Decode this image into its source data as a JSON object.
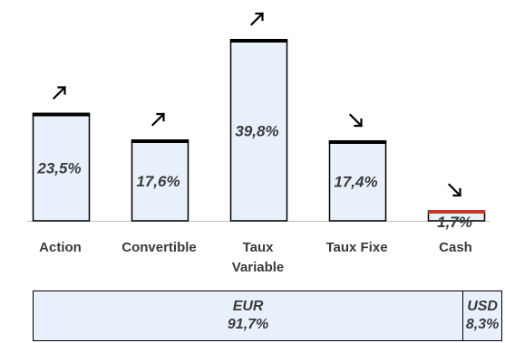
{
  "chart_data": {
    "type": "bar",
    "categories": [
      [
        "Action"
      ],
      [
        "Convertible"
      ],
      [
        "Taux",
        "Variable"
      ],
      [
        "Taux Fixe"
      ],
      [
        "Cash"
      ]
    ],
    "values": [
      23.5,
      17.6,
      39.8,
      17.4,
      1.7
    ],
    "value_labels": [
      "23,5%",
      "17,6%",
      "39,8%",
      "17,4%",
      "1,7%"
    ],
    "trends": [
      "up",
      "up",
      "up",
      "down",
      "down"
    ],
    "ylim": [
      0,
      44
    ],
    "cap_colors": [
      "#000000",
      "#000000",
      "#000000",
      "#000000",
      "#c0392b"
    ]
  },
  "currency_split": [
    {
      "name": "EUR",
      "label": "91,7%",
      "value": 91.7
    },
    {
      "name": "USD",
      "label": "8,3%",
      "value": 8.3
    }
  ]
}
